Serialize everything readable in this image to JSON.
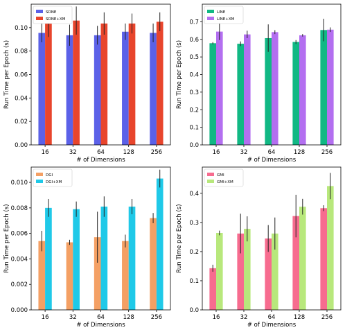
{
  "chart_data": [
    {
      "type": "bar",
      "categories": [
        "16",
        "32",
        "64",
        "128",
        "256"
      ],
      "xlabel": "# of Dimensions",
      "ylabel": "Run Time per Epoch (s)",
      "ylim": [
        0,
        0.12
      ],
      "yticks": [
        "0.00",
        "0.02",
        "0.04",
        "0.06",
        "0.08",
        "0.10"
      ],
      "yticks_values": [
        0,
        0.02,
        0.04,
        0.06,
        0.08,
        0.1
      ],
      "legend_position": "top-left",
      "grid": false,
      "series": [
        {
          "name": "SDNE",
          "color": "#5b61e8",
          "values": [
            0.0955,
            0.0935,
            0.0935,
            0.0965,
            0.0955
          ],
          "errors": [
            0.008,
            0.009,
            0.008,
            0.007,
            0.008
          ]
        },
        {
          "name": "SDNE+XM",
          "color": "#e8452c",
          "values": [
            0.105,
            0.106,
            0.1035,
            0.1035,
            0.105
          ],
          "errors": [
            0.013,
            0.012,
            0.0095,
            0.0085,
            0.008
          ]
        }
      ]
    },
    {
      "type": "bar",
      "categories": [
        "16",
        "32",
        "64",
        "128",
        "256"
      ],
      "xlabel": "# of Dimensions",
      "ylabel": "Run Time per Epoch (s)",
      "ylim": [
        0,
        0.8
      ],
      "yticks": [
        "0.0",
        "0.1",
        "0.2",
        "0.3",
        "0.4",
        "0.5",
        "0.6",
        "0.7"
      ],
      "yticks_values": [
        0,
        0.1,
        0.2,
        0.3,
        0.4,
        0.5,
        0.6,
        0.7
      ],
      "legend_position": "top-left",
      "grid": false,
      "series": [
        {
          "name": "LINE",
          "color": "#11b884",
          "values": [
            0.578,
            0.575,
            0.607,
            0.585,
            0.653
          ],
          "errors": [
            0.006,
            0.013,
            0.078,
            0.011,
            0.064
          ]
        },
        {
          "name": "LINE+XM",
          "color": "#b36ff0",
          "values": [
            0.644,
            0.628,
            0.641,
            0.623,
            0.655
          ],
          "errors": [
            0.048,
            0.021,
            0.011,
            0.007,
            0.013
          ]
        }
      ]
    },
    {
      "type": "bar",
      "categories": [
        "16",
        "32",
        "64",
        "128",
        "256"
      ],
      "xlabel": "# of Dimensions",
      "ylabel": "Run Time per Epoch (s)",
      "ylim": [
        0,
        0.0112
      ],
      "yticks": [
        "0.000",
        "0.002",
        "0.004",
        "0.006",
        "0.008",
        "0.010"
      ],
      "yticks_values": [
        0,
        0.002,
        0.004,
        0.006,
        0.008,
        0.01
      ],
      "legend_position": "top-left",
      "grid": false,
      "series": [
        {
          "name": "DGI",
          "color": "#f4a064",
          "values": [
            0.0054,
            0.0053,
            0.0057,
            0.0054,
            0.0072
          ],
          "errors": [
            0.0008,
            0.0002,
            0.002,
            0.0005,
            0.0004
          ]
        },
        {
          "name": "DGI+XM",
          "color": "#1fc9e8",
          "values": [
            0.008,
            0.0079,
            0.0081,
            0.0081,
            0.0103
          ],
          "errors": [
            0.0007,
            0.0006,
            0.0008,
            0.0006,
            0.0007
          ]
        }
      ]
    },
    {
      "type": "bar",
      "categories": [
        "16",
        "32",
        "64",
        "128",
        "256"
      ],
      "xlabel": "# of Dimensions",
      "ylabel": "Run Time per Epoch (s)",
      "ylim": [
        0,
        0.49
      ],
      "yticks": [
        "0.0",
        "0.1",
        "0.2",
        "0.3",
        "0.4"
      ],
      "yticks_values": [
        0,
        0.1,
        0.2,
        0.3,
        0.4
      ],
      "legend_position": "top-left",
      "grid": false,
      "series": [
        {
          "name": "GMI",
          "color": "#f76c8f",
          "values": [
            0.143,
            0.262,
            0.245,
            0.322,
            0.349
          ],
          "errors": [
            0.012,
            0.068,
            0.046,
            0.073,
            0.01
          ]
        },
        {
          "name": "GMI+XM",
          "color": "#b8e87c",
          "values": [
            0.264,
            0.278,
            0.262,
            0.354,
            0.425
          ],
          "errors": [
            0.008,
            0.043,
            0.055,
            0.027,
            0.045
          ]
        }
      ]
    }
  ]
}
